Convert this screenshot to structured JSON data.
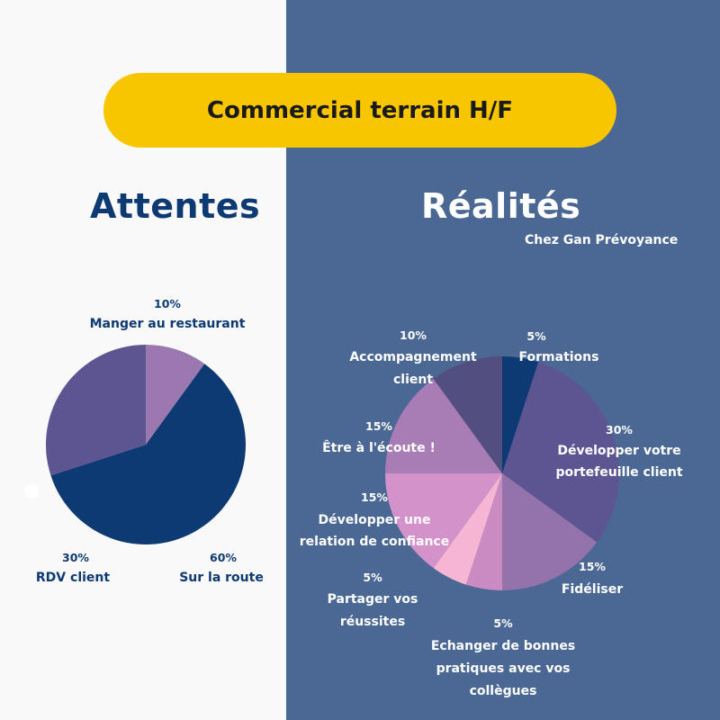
{
  "title": "Commercial terrain H/F",
  "left": {
    "heading": "Attentes"
  },
  "right": {
    "heading": "Réalités",
    "subtitle": "Chez Gan Prévoyance"
  },
  "colors": {
    "left_bg": "#f9f9f9",
    "right_bg": "#4a6893",
    "accent_yellow": "#f7c600",
    "navy": "#0d3a72"
  },
  "chart_data": [
    {
      "type": "pie",
      "title": "Attentes",
      "slices": [
        {
          "label": "Manger au restaurant",
          "percent_label": "10%",
          "value": 10,
          "color": "#9b78b0"
        },
        {
          "label": "Sur la route",
          "percent_label": "60%",
          "value": 60,
          "color": "#0d3a72"
        },
        {
          "label": "RDV client",
          "percent_label": "30%",
          "value": 30,
          "color": "#5d5492"
        }
      ]
    },
    {
      "type": "pie",
      "title": "Réalités",
      "slices": [
        {
          "label": "Formations",
          "percent_label": "5%",
          "value": 5,
          "color": "#0d3a72"
        },
        {
          "label": "Développer votre portefeuille client",
          "percent_label": "30%",
          "value": 30,
          "color": "#5d5492"
        },
        {
          "label": "Fidéliser",
          "percent_label": "15%",
          "value": 15,
          "color": "#9473ab"
        },
        {
          "label": "Echanger de bonnes pratiques avec vos collègues",
          "percent_label": "5%",
          "value": 5,
          "color": "#c98bc2"
        },
        {
          "label": "Partager vos réussites",
          "percent_label": "5%",
          "value": 5,
          "color": "#f6b6d3"
        },
        {
          "label": "Développer une relation de confiance",
          "percent_label": "15%",
          "value": 15,
          "color": "#d492cb"
        },
        {
          "label": "Être à l'écoute !",
          "percent_label": "15%",
          "value": 15,
          "color": "#a87cb4"
        },
        {
          "label": "Accompagnement client",
          "percent_label": "10%",
          "value": 10,
          "color": "#524f80"
        }
      ]
    }
  ]
}
